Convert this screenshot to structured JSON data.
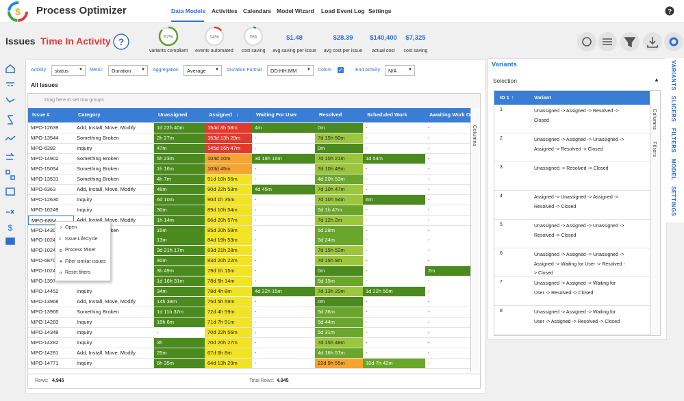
{
  "header": {
    "app_name": "Process Optimizer",
    "nav": [
      "Data Models",
      "Activities",
      "Calendars",
      "Model Wizard",
      "Load Event Log",
      "Settings"
    ]
  },
  "page_header": {
    "title": "Issues",
    "subtitle": "Time In Activity",
    "gauges": [
      {
        "value": 87,
        "label": "87%",
        "caption": "variants compliant"
      },
      {
        "value": 14,
        "label": "14%",
        "caption": "events automated"
      },
      {
        "value": 5,
        "label": "5%",
        "caption": "cost saving"
      }
    ],
    "kpis": [
      {
        "value": "$1.48",
        "caption": "avg saving per issue"
      },
      {
        "value": "$28.39",
        "caption": "avg cost per issue"
      },
      {
        "value": "$140,400",
        "caption": "actual cost"
      },
      {
        "value": "$7,325",
        "caption": "cost saving"
      }
    ]
  },
  "filters": [
    {
      "label": "Activity",
      "value": "status"
    },
    {
      "label": "Metric",
      "value": "Duration"
    },
    {
      "label": "Aggregation",
      "value": "Average"
    },
    {
      "label": "Duration Format",
      "value": "DD:HH:MM"
    },
    {
      "label": "Colors",
      "checked": true
    },
    {
      "label": "End Activity",
      "value": "N/A"
    }
  ],
  "grid": {
    "title": "All Issues",
    "group_hint": "Drag here to set row groups",
    "side_tabs": [
      "Columns"
    ],
    "columns": [
      "Issue #",
      "Category",
      "Unassigned",
      "Assigned",
      "Waiting For User",
      "Resolved",
      "Scheduled Work",
      "Awaiting Work Ord"
    ],
    "palette": {
      "g": "#4b8a1e",
      "m": "#6aa62b",
      "l": "#9cc73c",
      "y": "#f2e424",
      "o": "#f4a532",
      "r": "#e3392c"
    },
    "rows": [
      [
        "MPO-12639",
        "Add, Install, Move, Modify",
        "1d 22h 40m",
        "154d 3h 58m",
        "4m",
        "0m",
        "-",
        "-"
      ],
      [
        "MPO-13544",
        "Something Broken",
        "2h 27m",
        "153d 13h 29m",
        "-",
        "7d 15h 50m",
        "-",
        "-"
      ],
      [
        "MPO-6392",
        "Inquiry",
        "47m",
        "145d 16h 47m",
        "-",
        "0m",
        "-",
        "-"
      ],
      [
        "MPO-14902",
        "Something Broken",
        "5h 23m",
        "104d 10m",
        "3d 18h 16m",
        "7d 10h 21m",
        "1d 54m",
        "-"
      ],
      [
        "MPO-15054",
        "Something Broken",
        "1h 16m",
        "103d 45m",
        "-",
        "7d 10h 49m",
        "-",
        "-"
      ],
      [
        "MPO-13531",
        "Something Broken",
        "4h 7m",
        "91d 16h 56m",
        "-",
        "4d 20h 53m",
        "-",
        "-"
      ],
      [
        "MPO-6363",
        "Add, Install, Move, Modify",
        "46m",
        "90d 22h 53m",
        "4d 45m",
        "7d 10h 47m",
        "-",
        "-"
      ],
      [
        "MPO-12630",
        "Inquiry",
        "6d 10m",
        "90d 1h 35m",
        "-",
        "7d 10h 54m",
        "6m",
        "-"
      ],
      [
        "MPO-10249",
        "Inquiry",
        "30m",
        "89d 10h 54m",
        "-",
        "5d 1h 47m",
        "-",
        "-"
      ],
      [
        "MPO-6884",
        "Add, Install, Move, Modify",
        "1h 14m",
        "86d 20h 57m",
        "-",
        "7d 12h 2m",
        "-",
        "-"
      ],
      [
        "MPO-1430",
        "Something Broken",
        "15m",
        "85d 20h 59m",
        "-",
        "5d 28m",
        "-",
        "-"
      ],
      [
        "MPO-1024",
        null,
        "13m",
        "84d 19h 53m",
        "-",
        "5d 24m",
        "-",
        "-"
      ],
      [
        "MPO-1024",
        null,
        "3d 21h 17m",
        "83d 21h 28m",
        "-",
        "7d 15h 52m",
        "-",
        "-"
      ],
      [
        "MPO-6870",
        null,
        "40m",
        "83d 20h 22m",
        "-",
        "7d 15h 9m",
        "-",
        "-"
      ],
      [
        "MPO-1024",
        null,
        "3h 49m",
        "79d 1h 15m",
        "-",
        "0m",
        "-",
        "2m"
      ],
      [
        "MPO-1397",
        null,
        "1d 16h 31m",
        "78d 5h 14m",
        "-",
        "5d 15m",
        "-",
        "-"
      ],
      [
        "MPO-14452",
        "Inquiry",
        "34m",
        "78d 4h 8m",
        "4d 22h 15m",
        "7d 13h 20m",
        "1d 22h 50m",
        "-"
      ],
      [
        "MPO-13968",
        "Add, Install, Move, Modify",
        "14h 38m",
        "75d 5h 59m",
        "-",
        "0m",
        "-",
        "-"
      ],
      [
        "MPO-13965",
        "Something Broken",
        "1d 11h 37m",
        "72d 4h 59m",
        "-",
        "5d 36m",
        "-",
        "-"
      ],
      [
        "MPO-14283",
        "Inquiry",
        "18h 6m",
        "71d 7h 51m",
        "-",
        "5d 44m",
        "-",
        "-"
      ],
      [
        "MPO-14348",
        "Inquiry",
        "-",
        "70d 22h 56m",
        "-",
        "5d 31m",
        "-",
        "-"
      ],
      [
        "MPO-14282",
        "Inquiry",
        "3h",
        "70d 20h 27m",
        "-",
        "7d 15h 48m",
        "-",
        "-"
      ],
      [
        "MPO-14281",
        "Add, Install, Move, Modify",
        "25m",
        "67d 6h 8m",
        "-",
        "4d 16h 57m",
        "-",
        "-"
      ],
      [
        "MPO-14771",
        "Inquiry",
        "6h 35m",
        "64d 13h 29m",
        "-",
        "22d 9h 55m",
        "10d 7h 42m",
        "-"
      ]
    ],
    "cell_colors": [
      "grgg..",
      "gr.l..",
      "gr.g..",
      "goglg.",
      "go.l..",
      "gy.m..",
      "gygl..",
      "gy.lg.",
      "gy.m..",
      "gy.l..",
      "gy.m..",
      "gy.m..",
      "gy.l..",
      "gy.l..",
      "gy.g.g",
      "gy.m..",
      "gyglg.",
      "gy.g..",
      "gy.m..",
      "gy.m..",
      ".y.m..",
      "gy.l..",
      "gy.m..",
      "gy.om."
    ],
    "footer": {
      "rows_label": "Rows:",
      "rows": "4,945",
      "total_label": "Total Rows:",
      "total": "4,945"
    }
  },
  "context_menu": [
    "Open",
    "Issue LifeCycle",
    "Process Miner",
    "Filter similar issues",
    "Reset filters"
  ],
  "variants": {
    "title": "Variants",
    "selection": "Selection",
    "columns": [
      "ID 1",
      "Variant"
    ],
    "side_tabs": [
      "Columns",
      "Filters"
    ],
    "rows": [
      [
        "1",
        "Unassigned -> Assigned -> Resolved -> Closed"
      ],
      [
        "2",
        "Unassigned -> Assigned -> Unassigned -> Assigned -> Resolved -> Closed"
      ],
      [
        "3",
        "Unassigned -> Resolved -> Closed"
      ],
      [
        "4",
        "Assigned -> Unassigned -> Assigned -> Resolved -> Closed"
      ],
      [
        "5",
        "Unassigned -> Assigned -> Unassigned -> Resolved -> Closed"
      ],
      [
        "6",
        "Unassigned -> Assigned -> Unassigned -> Assigned -> Waiting for User -> Resolved -> Closed"
      ],
      [
        "7",
        "Unassigned -> Assigned -> Waiting for User -> Resolved -> Closed"
      ],
      [
        "8",
        "Unassigned -> Assigned -> Waiting for User -> Assigned -> Resolved -> Closed"
      ]
    ]
  },
  "right_tabs": [
    "VARIANTS",
    "SLICERS",
    "FILTERS",
    "MODEL",
    "SETTINGS"
  ]
}
